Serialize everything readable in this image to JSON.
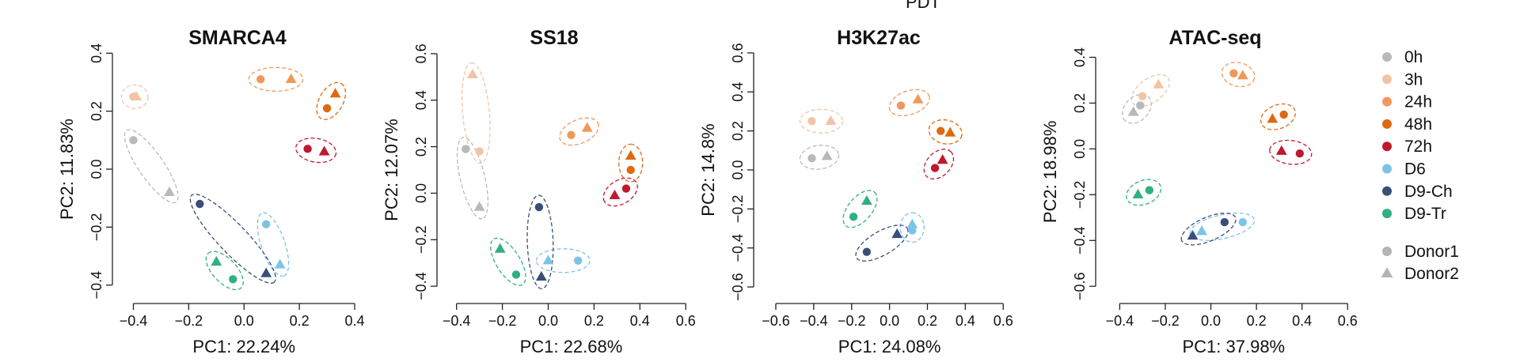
{
  "figure": {
    "top_label": "PDT",
    "colors": {
      "0h": "#b9b9b9",
      "3h": "#f4c3a5",
      "24h": "#f0985a",
      "48h": "#de6a10",
      "72h": "#c0182c",
      "D6": "#7cc3e8",
      "D9-Ch": "#3a4e78",
      "D9-Tr": "#2fb07f",
      "donor_gray": "#b4b4b4"
    },
    "legend": {
      "groups": [
        "0h",
        "3h",
        "24h",
        "48h",
        "72h",
        "D6",
        "D9-Ch",
        "D9-Tr"
      ],
      "donors": [
        {
          "label": "Donor1",
          "shape": "circle"
        },
        {
          "label": "Donor2",
          "shape": "triangle"
        }
      ]
    }
  },
  "chart_data": [
    {
      "type": "scatter",
      "title": "SMARCA4",
      "xlabel": "PC1: 22.24%",
      "ylabel": "PC2: 11.83%",
      "xlim": [
        -0.43,
        0.42
      ],
      "ylim": [
        -0.42,
        0.42
      ],
      "xticks": [
        -0.4,
        -0.2,
        0.0,
        0.2,
        0.4
      ],
      "xtick_labels": [
        "−0.4",
        "−0.2",
        "0.0",
        "0.2",
        "0.4"
      ],
      "yticks": [
        -0.4,
        -0.2,
        0.0,
        0.2,
        0.4
      ],
      "ytick_labels": [
        "−0.4",
        "−0.2",
        "0.0",
        "0.2",
        "0.4"
      ],
      "points": [
        {
          "group": "0h",
          "donor": 1,
          "x": -0.4,
          "y": 0.1
        },
        {
          "group": "0h",
          "donor": 2,
          "x": -0.27,
          "y": -0.08
        },
        {
          "group": "3h",
          "donor": 1,
          "x": -0.4,
          "y": 0.25
        },
        {
          "group": "3h",
          "donor": 2,
          "x": -0.39,
          "y": 0.25
        },
        {
          "group": "24h",
          "donor": 1,
          "x": 0.06,
          "y": 0.31
        },
        {
          "group": "24h",
          "donor": 2,
          "x": 0.17,
          "y": 0.31
        },
        {
          "group": "48h",
          "donor": 1,
          "x": 0.3,
          "y": 0.21
        },
        {
          "group": "48h",
          "donor": 2,
          "x": 0.33,
          "y": 0.26
        },
        {
          "group": "72h",
          "donor": 1,
          "x": 0.23,
          "y": 0.07
        },
        {
          "group": "72h",
          "donor": 2,
          "x": 0.29,
          "y": 0.06
        },
        {
          "group": "D6",
          "donor": 1,
          "x": 0.08,
          "y": -0.19
        },
        {
          "group": "D6",
          "donor": 2,
          "x": 0.13,
          "y": -0.33
        },
        {
          "group": "D9-Ch",
          "donor": 1,
          "x": -0.16,
          "y": -0.12
        },
        {
          "group": "D9-Ch",
          "donor": 2,
          "x": 0.08,
          "y": -0.36
        },
        {
          "group": "D9-Tr",
          "donor": 1,
          "x": -0.04,
          "y": -0.38
        },
        {
          "group": "D9-Tr",
          "donor": 2,
          "x": -0.1,
          "y": -0.32
        }
      ]
    },
    {
      "type": "scatter",
      "title": "SS18",
      "xlabel": "PC1: 22.68%",
      "ylabel": "PC2: 12.07%",
      "xlim": [
        -0.43,
        0.62
      ],
      "ylim": [
        -0.42,
        0.62
      ],
      "xticks": [
        -0.4,
        -0.2,
        0.0,
        0.2,
        0.4,
        0.6
      ],
      "xtick_labels": [
        "−0.4",
        "−0.2",
        "0.0",
        "0.2",
        "0.4",
        "0.6"
      ],
      "yticks": [
        -0.4,
        -0.2,
        0.0,
        0.2,
        0.4,
        0.6
      ],
      "ytick_labels": [
        "−0.4",
        "−0.2",
        "0.0",
        "0.2",
        "0.4",
        "0.6"
      ],
      "points": [
        {
          "group": "0h",
          "donor": 1,
          "x": -0.36,
          "y": 0.19
        },
        {
          "group": "0h",
          "donor": 2,
          "x": -0.3,
          "y": -0.06
        },
        {
          "group": "3h",
          "donor": 1,
          "x": -0.3,
          "y": 0.18
        },
        {
          "group": "3h",
          "donor": 2,
          "x": -0.33,
          "y": 0.51
        },
        {
          "group": "24h",
          "donor": 1,
          "x": 0.1,
          "y": 0.25
        },
        {
          "group": "24h",
          "donor": 2,
          "x": 0.17,
          "y": 0.28
        },
        {
          "group": "48h",
          "donor": 1,
          "x": 0.36,
          "y": 0.1
        },
        {
          "group": "48h",
          "donor": 2,
          "x": 0.36,
          "y": 0.16
        },
        {
          "group": "72h",
          "donor": 1,
          "x": 0.34,
          "y": 0.02
        },
        {
          "group": "72h",
          "donor": 2,
          "x": 0.29,
          "y": -0.01
        },
        {
          "group": "D6",
          "donor": 1,
          "x": 0.13,
          "y": -0.29
        },
        {
          "group": "D6",
          "donor": 2,
          "x": 0.0,
          "y": -0.29
        },
        {
          "group": "D9-Ch",
          "donor": 1,
          "x": -0.04,
          "y": -0.06
        },
        {
          "group": "D9-Ch",
          "donor": 2,
          "x": -0.03,
          "y": -0.36
        },
        {
          "group": "D9-Tr",
          "donor": 1,
          "x": -0.14,
          "y": -0.35
        },
        {
          "group": "D9-Tr",
          "donor": 2,
          "x": -0.21,
          "y": -0.24
        }
      ]
    },
    {
      "type": "scatter",
      "title": "H3K27ac",
      "xlabel": "PC1: 24.08%",
      "ylabel": "PC2: 14.8%",
      "xlim": [
        -0.65,
        0.62
      ],
      "ylim": [
        -0.62,
        0.62
      ],
      "xticks": [
        -0.6,
        -0.4,
        -0.2,
        0.0,
        0.2,
        0.4,
        0.6
      ],
      "xtick_labels": [
        "−0.6",
        "−0.4",
        "−0.2",
        "0.0",
        "0.2",
        "0.4",
        "0.6"
      ],
      "yticks": [
        -0.6,
        -0.4,
        -0.2,
        0.0,
        0.2,
        0.4,
        0.6
      ],
      "ytick_labels": [
        "−0.6",
        "−0.4",
        "−0.2",
        "0.0",
        "0.2",
        "0.4",
        "0.6"
      ],
      "points": [
        {
          "group": "0h",
          "donor": 1,
          "x": -0.41,
          "y": 0.06
        },
        {
          "group": "0h",
          "donor": 2,
          "x": -0.33,
          "y": 0.07
        },
        {
          "group": "3h",
          "donor": 1,
          "x": -0.41,
          "y": 0.25
        },
        {
          "group": "3h",
          "donor": 2,
          "x": -0.31,
          "y": 0.25
        },
        {
          "group": "24h",
          "donor": 1,
          "x": 0.06,
          "y": 0.33
        },
        {
          "group": "24h",
          "donor": 2,
          "x": 0.15,
          "y": 0.36
        },
        {
          "group": "48h",
          "donor": 1,
          "x": 0.27,
          "y": 0.2
        },
        {
          "group": "48h",
          "donor": 2,
          "x": 0.32,
          "y": 0.19
        },
        {
          "group": "72h",
          "donor": 1,
          "x": 0.24,
          "y": 0.01
        },
        {
          "group": "72h",
          "donor": 2,
          "x": 0.28,
          "y": 0.05
        },
        {
          "group": "D6",
          "donor": 1,
          "x": 0.12,
          "y": -0.31
        },
        {
          "group": "D6",
          "donor": 2,
          "x": 0.12,
          "y": -0.28
        },
        {
          "group": "D9-Ch",
          "donor": 1,
          "x": -0.12,
          "y": -0.42
        },
        {
          "group": "D9-Ch",
          "donor": 2,
          "x": 0.04,
          "y": -0.33
        },
        {
          "group": "D9-Tr",
          "donor": 1,
          "x": -0.19,
          "y": -0.24
        },
        {
          "group": "D9-Tr",
          "donor": 2,
          "x": -0.12,
          "y": -0.16
        }
      ]
    },
    {
      "type": "scatter",
      "title": "ATAC-seq",
      "xlabel": "PC1: 37.98%",
      "ylabel": "PC2: 18.98%",
      "xlim": [
        -0.45,
        0.62
      ],
      "ylim": [
        -0.62,
        0.45
      ],
      "xticks": [
        -0.4,
        -0.2,
        0.0,
        0.2,
        0.4,
        0.6
      ],
      "xtick_labels": [
        "−0.4",
        "−0.2",
        "0.0",
        "0.2",
        "0.4",
        "0.6"
      ],
      "yticks": [
        -0.6,
        -0.4,
        -0.2,
        0.0,
        0.2,
        0.4
      ],
      "ytick_labels": [
        "−0.6",
        "−0.4",
        "−0.2",
        "0.0",
        "0.2",
        "0.4"
      ],
      "points": [
        {
          "group": "0h",
          "donor": 1,
          "x": -0.31,
          "y": 0.19
        },
        {
          "group": "0h",
          "donor": 2,
          "x": -0.34,
          "y": 0.16
        },
        {
          "group": "3h",
          "donor": 1,
          "x": -0.3,
          "y": 0.23
        },
        {
          "group": "3h",
          "donor": 2,
          "x": -0.23,
          "y": 0.28
        },
        {
          "group": "24h",
          "donor": 1,
          "x": 0.1,
          "y": 0.33
        },
        {
          "group": "24h",
          "donor": 2,
          "x": 0.14,
          "y": 0.32
        },
        {
          "group": "48h",
          "donor": 1,
          "x": 0.32,
          "y": 0.15
        },
        {
          "group": "48h",
          "donor": 2,
          "x": 0.27,
          "y": 0.13
        },
        {
          "group": "72h",
          "donor": 1,
          "x": 0.39,
          "y": -0.02
        },
        {
          "group": "72h",
          "donor": 2,
          "x": 0.31,
          "y": -0.01
        },
        {
          "group": "D6",
          "donor": 1,
          "x": 0.14,
          "y": -0.32
        },
        {
          "group": "D6",
          "donor": 2,
          "x": -0.04,
          "y": -0.36
        },
        {
          "group": "D9-Ch",
          "donor": 1,
          "x": 0.06,
          "y": -0.32
        },
        {
          "group": "D9-Ch",
          "donor": 2,
          "x": -0.08,
          "y": -0.38
        },
        {
          "group": "D9-Tr",
          "donor": 1,
          "x": -0.27,
          "y": -0.18
        },
        {
          "group": "D9-Tr",
          "donor": 2,
          "x": -0.32,
          "y": -0.2
        }
      ]
    }
  ]
}
